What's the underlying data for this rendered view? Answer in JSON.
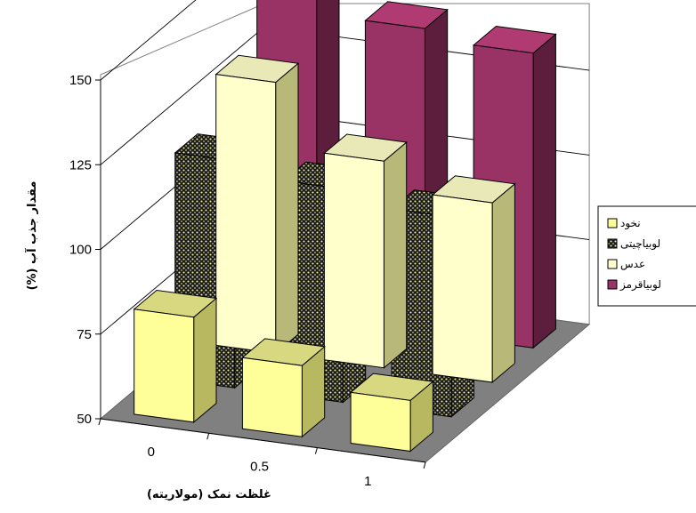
{
  "chart_data": {
    "type": "bar",
    "subtype": "3d-clustered-column",
    "xlabel": "غلظت نمک (مولاریته)",
    "ylabel": "مقدار جذب آب (%)",
    "categories": [
      "0",
      "0.5",
      "1"
    ],
    "y_ticks": [
      "50",
      "75",
      "100",
      "125",
      "150"
    ],
    "ylim": [
      50,
      150
    ],
    "grid": true,
    "legend_position": "right",
    "series": [
      {
        "name": "نخود",
        "values": [
          81,
          71,
          65
        ],
        "color": "#FFFF99",
        "pattern": "solid"
      },
      {
        "name": "لوبیاچیتی",
        "values": [
          117,
          113,
          109
        ],
        "color": "#1a1a1a",
        "pattern": "dotted-checker"
      },
      {
        "name": "عدس",
        "values": [
          130,
          111,
          103
        ],
        "color": "#FFFFCC",
        "pattern": "solid"
      },
      {
        "name": "لوبیاقرمز",
        "values": [
          151,
          140,
          137
        ],
        "color": "#993366",
        "pattern": "solid"
      }
    ]
  }
}
